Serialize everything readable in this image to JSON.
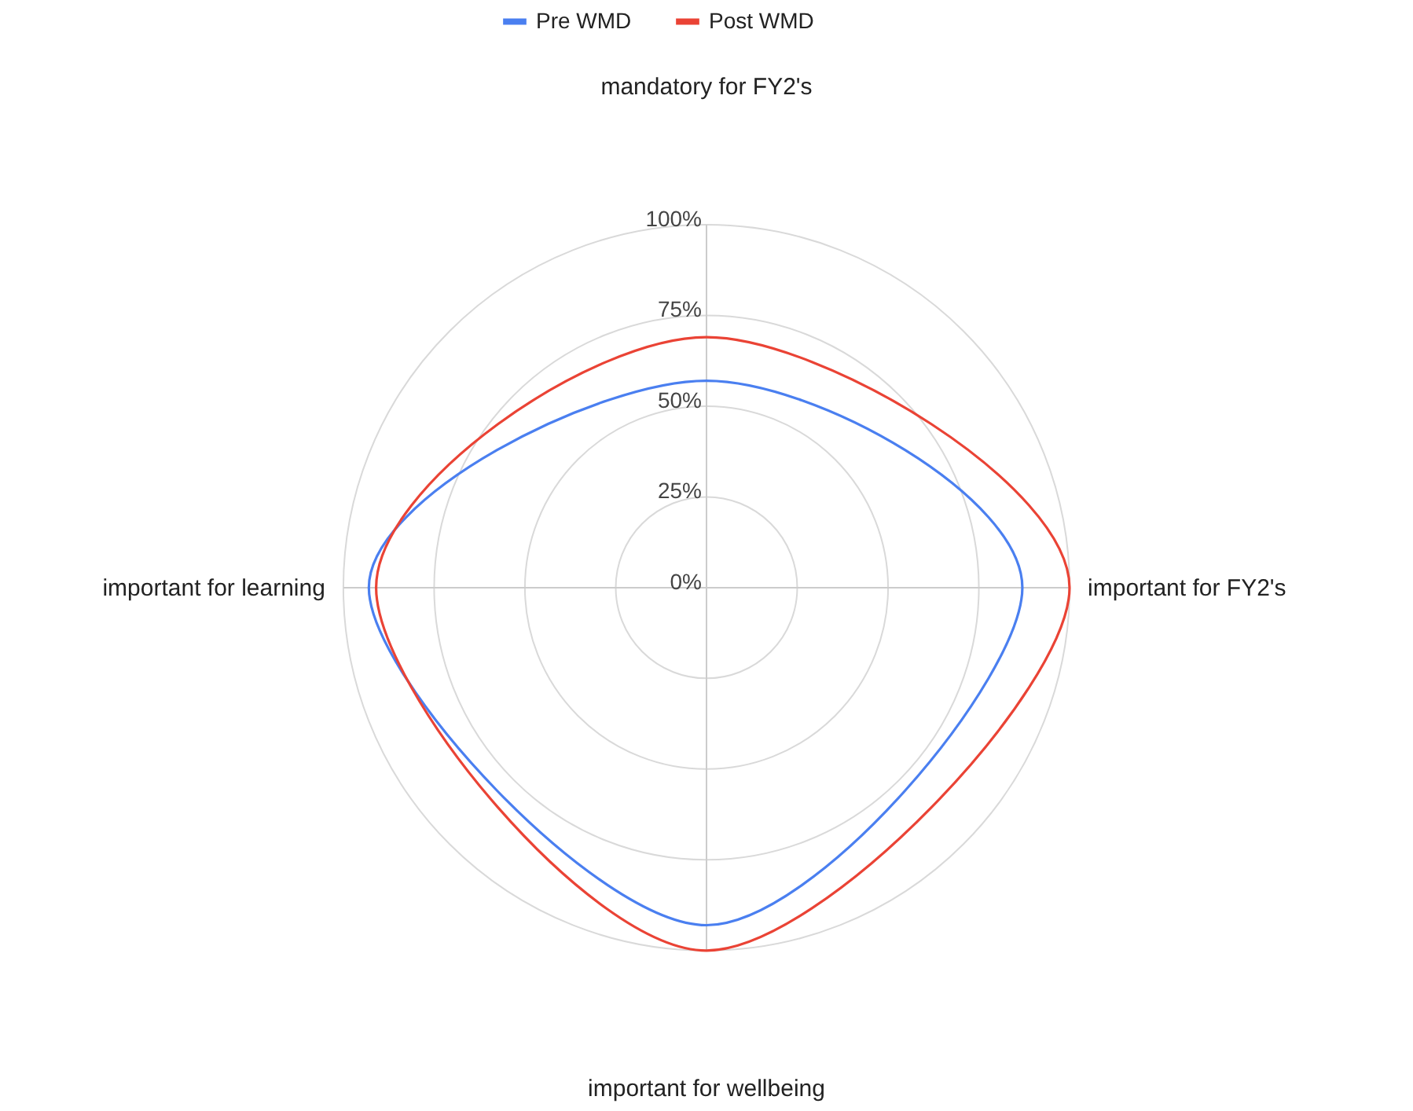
{
  "chart_data": {
    "type": "radar",
    "categories": [
      "mandatory for FY2's",
      "important for FY2's",
      "important for wellbeing",
      "important for learning"
    ],
    "series": [
      {
        "name": "Pre WMD",
        "color": "#4a7ff0",
        "values": [
          57,
          87,
          93,
          93
        ]
      },
      {
        "name": "Post WMD",
        "color": "#ea4335",
        "values": [
          69,
          100,
          100,
          91
        ]
      }
    ],
    "ylim": [
      0,
      100
    ],
    "yticks": [
      {
        "value": 0,
        "label": "0%"
      },
      {
        "value": 25,
        "label": "25%"
      },
      {
        "value": 50,
        "label": "50%"
      },
      {
        "value": 75,
        "label": "75%"
      },
      {
        "value": 100,
        "label": "100%"
      }
    ],
    "grid": true,
    "legend": "top"
  }
}
